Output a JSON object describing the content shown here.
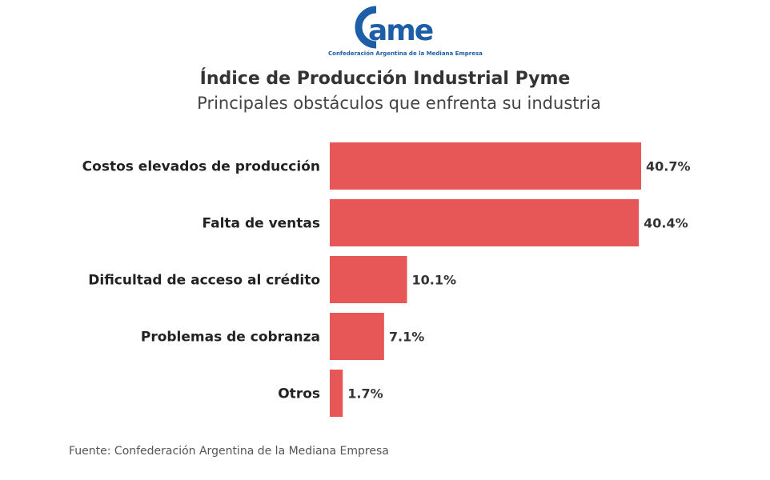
{
  "logo": {
    "text": "came",
    "tagline": "Confederación Argentina de la Mediana Empresa",
    "color": "#1d5ea8"
  },
  "title": "Índice de Producción Industrial Pyme",
  "subtitle": "Principales obstáculos que enfrenta su industria",
  "footer": "Fuente: Confederación Argentina de la Mediana Empresa",
  "chart_data": {
    "type": "bar",
    "orientation": "horizontal",
    "categories": [
      "Costos elevados de producción",
      "Falta de ventas",
      "Dificultad de acceso al crédito",
      "Problemas de cobranza",
      "Otros"
    ],
    "values": [
      40.7,
      40.4,
      10.1,
      7.1,
      1.7
    ],
    "data_labels": [
      "40.7%",
      "40.4%",
      "10.1%",
      "7.1%",
      "1.7%"
    ],
    "title": "Índice de Producción Industrial Pyme",
    "subtitle": "Principales obstáculos que enfrenta su industria",
    "bar_color": "#e85757",
    "grid": false,
    "legend": "none"
  }
}
